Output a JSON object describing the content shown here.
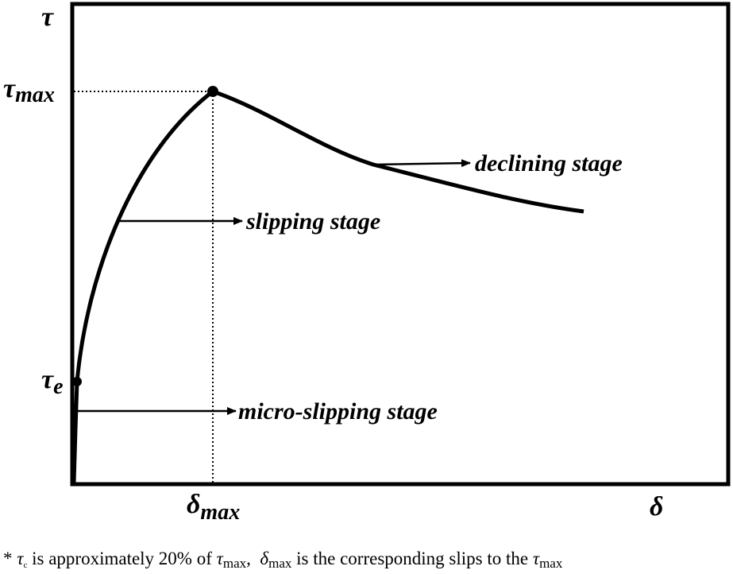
{
  "axes": {
    "y_symbol": "τ",
    "x_symbol": "δ"
  },
  "points": {
    "tau_max": {
      "symbol": "τ",
      "sub": "max"
    },
    "tau_e": {
      "symbol": "τ",
      "sub": "e"
    },
    "delta_max": {
      "symbol": "δ",
      "sub": "max"
    }
  },
  "stages": {
    "declining": "declining stage",
    "slipping": "slipping stage",
    "micro_slipping": "micro-slipping stage"
  },
  "footnote": {
    "parts": [
      "* ",
      "τ",
      "c",
      " is approximately 20% of ",
      "τ",
      "max",
      ",  ",
      "δ",
      "max",
      " is the corresponding slips to the ",
      "τ",
      "max"
    ]
  }
}
